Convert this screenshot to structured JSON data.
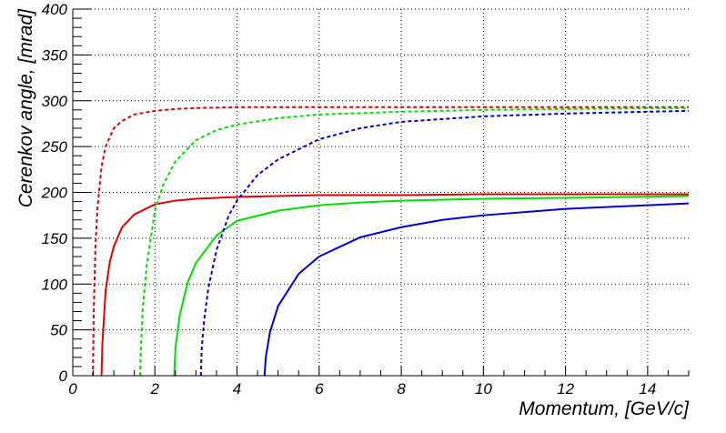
{
  "chart_data": {
    "type": "line",
    "xlabel": "Momentum, [GeV/c]",
    "ylabel": "Cerenkov angle, [mrad]",
    "xlim": [
      0,
      15
    ],
    "ylim": [
      0,
      400
    ],
    "x_ticks": [
      0,
      2,
      4,
      6,
      8,
      10,
      12,
      14
    ],
    "y_ticks": [
      0,
      50,
      100,
      150,
      200,
      250,
      300,
      350,
      400
    ],
    "x_tick_labels": [
      "0",
      "2",
      "4",
      "6",
      "8",
      "10",
      "12",
      "14"
    ],
    "y_tick_labels": [
      "0",
      "50",
      "100",
      "150",
      "200",
      "250",
      "300",
      "350",
      "400"
    ],
    "grid": true,
    "colors": {
      "red": "#e00000",
      "green": "#00e000",
      "blue": "#0000cc"
    },
    "series": [
      {
        "color": "#e00000",
        "style": "solid",
        "x": [
          0.7,
          0.72,
          0.8,
          0.9,
          1.0,
          1.2,
          1.5,
          2.0,
          2.5,
          3.0,
          4.0,
          5.0,
          6.0,
          8.0,
          10.0,
          12.0,
          15.0
        ],
        "y": [
          0,
          34,
          93,
          124,
          141,
          162,
          176,
          187,
          191,
          193,
          195,
          196,
          197,
          197,
          198,
          198,
          198
        ]
      },
      {
        "color": "#e00000",
        "style": "dashed",
        "x": [
          0.49,
          0.51,
          0.55,
          0.6,
          0.7,
          0.8,
          1.0,
          1.2,
          1.5,
          2.0,
          2.5,
          3.0,
          4.0,
          5.0,
          6.0,
          8.0,
          10.0,
          12.0,
          15.0
        ],
        "y": [
          0,
          69,
          139,
          182,
          228,
          250,
          270,
          278,
          285,
          289,
          291,
          292,
          293,
          293,
          293,
          293,
          293,
          293,
          293
        ]
      },
      {
        "color": "#00e000",
        "style": "solid",
        "x": [
          2.47,
          2.5,
          2.6,
          2.8,
          3.0,
          3.5,
          4.0,
          5.0,
          6.0,
          7.0,
          8.0,
          10.0,
          12.0,
          15.0
        ],
        "y": [
          0,
          30,
          65,
          102,
          123,
          153,
          169,
          180,
          186,
          189,
          191,
          193,
          194,
          196
        ]
      },
      {
        "color": "#00e000",
        "style": "dashed",
        "x": [
          1.64,
          1.66,
          1.7,
          1.8,
          2.0,
          2.2,
          2.5,
          3.0,
          3.5,
          4.0,
          5.0,
          6.0,
          8.0,
          10.0,
          12.0,
          15.0
        ],
        "y": [
          0,
          31,
          71,
          120,
          180,
          208,
          234,
          257,
          268,
          274,
          281,
          285,
          288,
          290,
          291,
          292
        ]
      },
      {
        "color": "#0000cc",
        "style": "solid",
        "x": [
          4.67,
          4.7,
          4.8,
          5.0,
          5.5,
          6.0,
          7.0,
          8.0,
          9.0,
          10.0,
          12.0,
          14.0,
          15.0
        ],
        "y": [
          0,
          20,
          47,
          76,
          111,
          130,
          151,
          162,
          170,
          175,
          182,
          186,
          188
        ]
      },
      {
        "color": "#0000cc",
        "style": "dashed",
        "x": [
          3.12,
          3.14,
          3.2,
          3.3,
          3.5,
          3.8,
          4.0,
          4.5,
          5.0,
          6.0,
          7.0,
          8.0,
          10.0,
          12.0,
          15.0
        ],
        "y": [
          0,
          30,
          61,
          95,
          137,
          175,
          191,
          219,
          236,
          258,
          270,
          277,
          283,
          286,
          289
        ]
      }
    ]
  }
}
